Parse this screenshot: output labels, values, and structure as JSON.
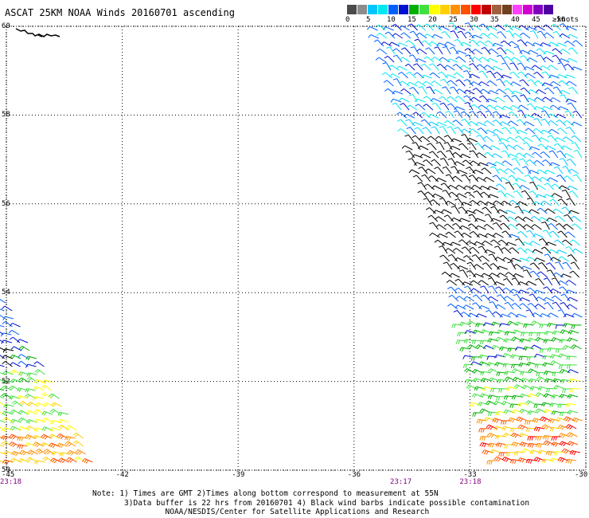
{
  "title": "ASCAT 25KM NOAA Winds 20160701 ascending",
  "colorbar": {
    "colors": [
      "#4a4a4a",
      "#8c8c8c",
      "#00c8ff",
      "#00e8f0",
      "#0060ff",
      "#0010d0",
      "#00b000",
      "#40e040",
      "#ffff00",
      "#ffd000",
      "#ff9000",
      "#ff5000",
      "#ff0000",
      "#c00000",
      "#a06040",
      "#704020",
      "#ff40ff",
      "#d000d0",
      "#8000c0",
      "#5000a0"
    ],
    "labels": [
      "0",
      "5",
      "10",
      "15",
      "20",
      "25",
      "30",
      "35",
      "40",
      "45",
      "≥50"
    ],
    "units": "knots"
  },
  "map": {
    "lat_range": [
      50,
      60
    ],
    "lon_range": [
      -45,
      -30
    ],
    "lat_ticks": [
      "60",
      "58",
      "56",
      "54",
      "52",
      "50"
    ],
    "lon_ticks": [
      "-45",
      "-42",
      "-39",
      "-36",
      "-33",
      "-30"
    ],
    "time_labels": [
      {
        "text": "23:18",
        "lon": -45
      },
      {
        "text": "23:17",
        "lon": -34.8
      },
      {
        "text": "23:18",
        "lon": -33
      }
    ]
  },
  "notes": [
    "Note: 1) Times are GMT 2)Times along bottom correspond to measurement at 55N",
    "       3)Data buffer is 22 hrs from 20160701 4) Black wind barbs indicate possible contamination",
    "                NOAA/NESDIS/Center for Satellite Applications and Research"
  ]
}
